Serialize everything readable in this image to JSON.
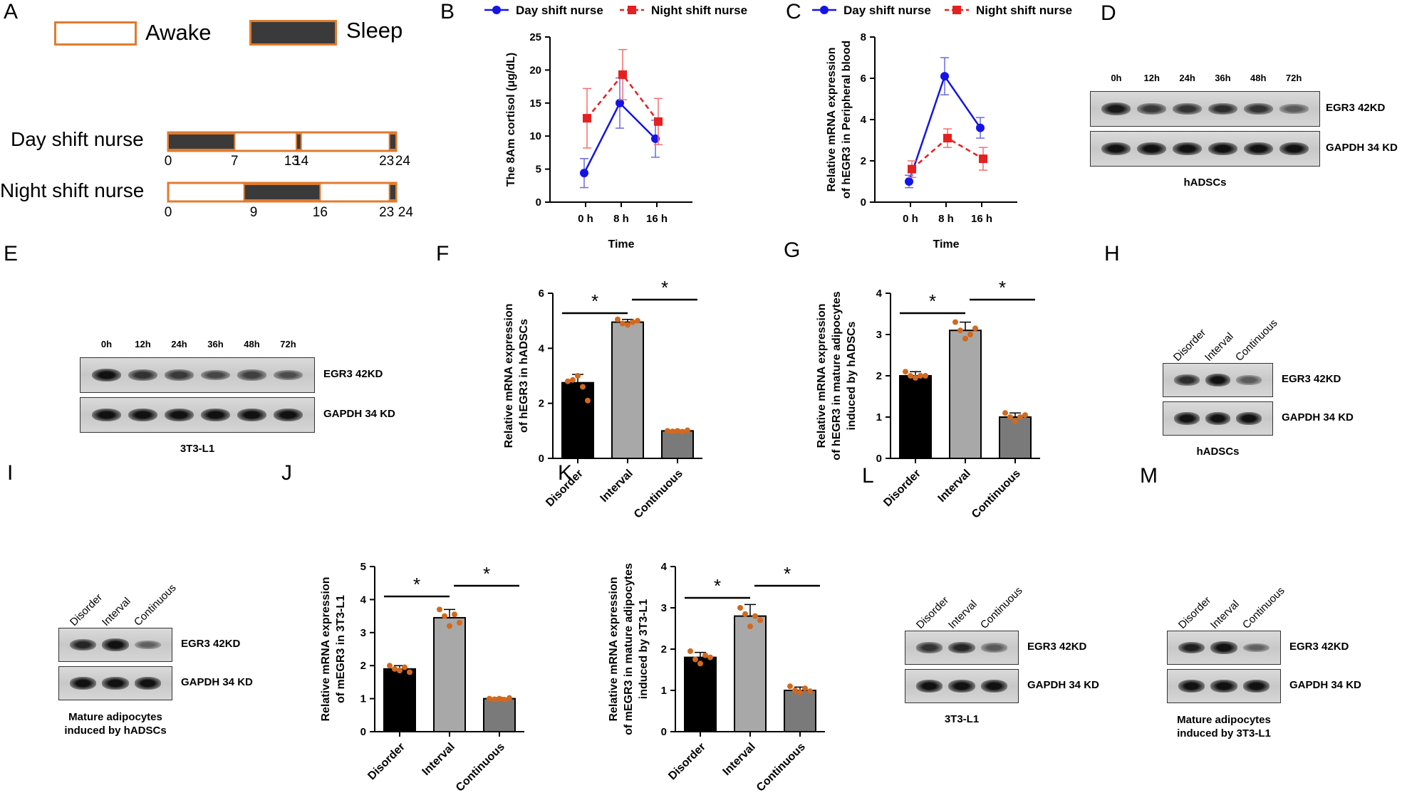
{
  "panels": {
    "A": {
      "letter": "A",
      "legend_awake": "Awake",
      "legend_sleep": "Sleep",
      "day_label": "Day shift nurse",
      "night_label": "Night shift nurse",
      "day_ticks": [
        "0",
        "7",
        "13",
        "14",
        "23",
        "24"
      ],
      "night_ticks": [
        "0",
        "9",
        "16",
        "23",
        "24"
      ],
      "day_sleep_segments": [
        [
          0,
          7
        ],
        [
          13.5,
          14
        ],
        [
          23.3,
          24
        ]
      ],
      "night_sleep_segments": [
        [
          8,
          16
        ],
        [
          23.3,
          24
        ]
      ]
    },
    "B": {
      "letter": "B"
    },
    "C": {
      "letter": "C"
    },
    "D": {
      "letter": "D",
      "lanes": [
        "0h",
        "12h",
        "24h",
        "36h",
        "48h",
        "72h"
      ],
      "band1": "EGR3 42KD",
      "band2": "GAPDH 34 KD",
      "caption": "hADSCs",
      "intensity": [
        0.9,
        0.65,
        0.7,
        0.75,
        0.7,
        0.4
      ]
    },
    "E": {
      "letter": "E",
      "lanes": [
        "0h",
        "12h",
        "24h",
        "36h",
        "48h",
        "72h"
      ],
      "band1": "EGR3 42KD",
      "band2": "GAPDH 34 KD",
      "caption": "3T3-L1",
      "intensity": [
        0.95,
        0.7,
        0.65,
        0.55,
        0.6,
        0.5
      ]
    },
    "F": {
      "letter": "F"
    },
    "G": {
      "letter": "G"
    },
    "H": {
      "letter": "H",
      "lanes": [
        "Disorder",
        "Interval",
        "Continuous"
      ],
      "band1": "EGR3 42KD",
      "band2": "GAPDH 34 KD",
      "caption": "hADSCs",
      "intensity": [
        0.75,
        0.95,
        0.4
      ]
    },
    "I": {
      "letter": "I",
      "lanes": [
        "Disorder",
        "Interval",
        "Continuous"
      ],
      "band1": "EGR3 42KD",
      "band2": "GAPDH 34 KD",
      "caption": "Mature adipocytes\ninduced by hADSCs",
      "caption_l1": "Mature adipocytes",
      "caption_l2": "induced by hADSCs",
      "intensity": [
        0.8,
        0.95,
        0.35
      ]
    },
    "J": {
      "letter": "J"
    },
    "K": {
      "letter": "K"
    },
    "L": {
      "letter": "L",
      "lanes": [
        "Disorder",
        "Interval",
        "Continuous"
      ],
      "band1": "EGR3 42KD",
      "band2": "GAPDH 34 KD",
      "caption": "3T3-L1",
      "intensity": [
        0.7,
        0.8,
        0.4
      ]
    },
    "M": {
      "letter": "M",
      "lanes": [
        "Disorder",
        "Interval",
        "Continuous"
      ],
      "band1": "EGR3 42KD",
      "band2": "GAPDH 34 KD",
      "caption_l1": "Mature adipocytes",
      "caption_l2": "induced by 3T3-L1",
      "intensity": [
        0.85,
        0.95,
        0.35
      ]
    }
  },
  "colors": {
    "day": "#1414e6",
    "night": "#e62020",
    "night_light": "#f07070",
    "orange": "#e07b30",
    "bar1": "#000000",
    "bar2": "#a8a8a8",
    "bar3": "#7a7a7a",
    "dot": "#d2691e"
  },
  "chart_data": [
    {
      "id": "B",
      "type": "line",
      "title": "",
      "xlabel": "Time",
      "ylabel": "The 8Am cortisol (μg/dL)",
      "categories": [
        "0 h",
        "8 h",
        "16 h"
      ],
      "ylim": [
        0,
        25
      ],
      "yticks": [
        0,
        5,
        10,
        15,
        20,
        25
      ],
      "series": [
        {
          "name": "Day shift nurse",
          "values": [
            4.4,
            15.0,
            9.6
          ],
          "err": [
            2.2,
            3.8,
            2.8
          ]
        },
        {
          "name": "Night shift nurse",
          "values": [
            12.7,
            19.3,
            12.2
          ],
          "err": [
            4.5,
            3.8,
            3.5
          ]
        }
      ]
    },
    {
      "id": "C",
      "type": "line",
      "xlabel": "Time",
      "ylabel_l1": "Relative mRNA expression",
      "ylabel_l2": "of hEGR3 in Peripheral blood",
      "categories": [
        "0 h",
        "8 h",
        "16 h"
      ],
      "ylim": [
        0,
        8
      ],
      "yticks": [
        0,
        2,
        4,
        6,
        8
      ],
      "series": [
        {
          "name": "Day shift nurse",
          "values": [
            1.0,
            6.1,
            3.6
          ],
          "err": [
            0.3,
            0.9,
            0.5
          ]
        },
        {
          "name": "Night shift nurse",
          "values": [
            1.6,
            3.1,
            2.1
          ],
          "err": [
            0.4,
            0.45,
            0.55
          ]
        }
      ]
    },
    {
      "id": "F",
      "type": "bar",
      "ylabel_l1": "Relative mRNA expression",
      "ylabel_l2": "of hEGR3 in hADSCs",
      "categories": [
        "Disorder",
        "Interval",
        "Continuous"
      ],
      "values": [
        2.75,
        4.95,
        1.0
      ],
      "err": [
        0.3,
        0.1,
        0.03
      ],
      "points": [
        [
          2.8,
          2.85,
          3.0,
          2.6,
          2.1
        ],
        [
          5.05,
          4.9,
          4.85,
          4.95,
          5.0
        ],
        [
          1.0,
          0.98,
          1.0,
          0.97,
          1.02
        ]
      ],
      "ylim": [
        0,
        6
      ],
      "yticks": [
        0,
        2,
        4,
        6
      ],
      "sig": [
        "*",
        "*"
      ]
    },
    {
      "id": "G",
      "type": "bar",
      "ylabel_l1": "Relative mRNA expression",
      "ylabel_l2": "of hEGR3 in mature adipocytes",
      "ylabel_l3": "induced by hADSCs",
      "categories": [
        "Disorder",
        "Interval",
        "Continuous"
      ],
      "values": [
        2.0,
        3.1,
        1.0
      ],
      "err": [
        0.1,
        0.2,
        0.1
      ],
      "points": [
        [
          2.1,
          2.0,
          1.95,
          2.0,
          2.0
        ],
        [
          3.3,
          3.1,
          2.9,
          3.0,
          3.15
        ],
        [
          1.1,
          1.0,
          0.9,
          1.0,
          1.05
        ]
      ],
      "ylim": [
        0,
        4
      ],
      "yticks": [
        0,
        1,
        2,
        3,
        4
      ],
      "sig": [
        "*",
        "*"
      ]
    },
    {
      "id": "J",
      "type": "bar",
      "ylabel_l1": "Relative mRNA expression",
      "ylabel_l2": "of mEGR3 in 3T3-L1",
      "categories": [
        "Disorder",
        "Interval",
        "Continuous"
      ],
      "values": [
        1.9,
        3.45,
        1.0
      ],
      "err": [
        0.1,
        0.25,
        0.03
      ],
      "points": [
        [
          2.0,
          1.9,
          1.85,
          1.95,
          1.8
        ],
        [
          3.7,
          3.5,
          3.2,
          3.55,
          3.3
        ],
        [
          1.0,
          0.98,
          1.0,
          0.97,
          1.02
        ]
      ],
      "ylim": [
        0,
        5
      ],
      "yticks": [
        0,
        1,
        2,
        3,
        4,
        5
      ],
      "sig": [
        "*",
        "*"
      ]
    },
    {
      "id": "K",
      "type": "bar",
      "ylabel_l1": "Relative mRNA expression",
      "ylabel_l2": "of mEGR3 in mature adipocytes",
      "ylabel_l3": "induced by 3T3-L1",
      "categories": [
        "Disorder",
        "Interval",
        "Continuous"
      ],
      "values": [
        1.8,
        2.8,
        1.0
      ],
      "err": [
        0.12,
        0.28,
        0.08
      ],
      "points": [
        [
          1.95,
          1.75,
          1.65,
          1.85,
          1.8
        ],
        [
          3.0,
          2.85,
          2.55,
          2.8,
          2.7
        ],
        [
          1.1,
          1.0,
          0.95,
          1.05,
          0.98
        ]
      ],
      "ylim": [
        0,
        4
      ],
      "yticks": [
        0,
        1,
        2,
        3,
        4
      ],
      "sig": [
        "*",
        "*"
      ]
    }
  ]
}
